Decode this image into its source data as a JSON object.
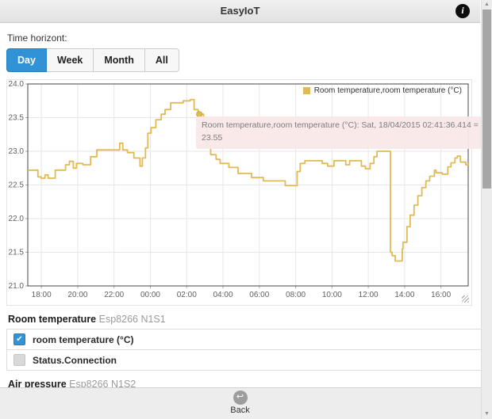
{
  "header": {
    "title": "EasyIoT",
    "info_icon": "i"
  },
  "time_horizon": {
    "label": "Time horizont:",
    "options": [
      {
        "label": "Day",
        "active": true
      },
      {
        "label": "Week",
        "active": false
      },
      {
        "label": "Month",
        "active": false
      },
      {
        "label": "All",
        "active": false
      }
    ]
  },
  "chart_data": {
    "type": "line",
    "step": true,
    "title": "",
    "xlabel": "",
    "ylabel": "",
    "xlim": [
      17.25,
      41.5
    ],
    "ylim": [
      21.0,
      24.0
    ],
    "y_ticks": [
      21.0,
      21.5,
      22.0,
      22.5,
      23.0,
      23.5,
      24.0
    ],
    "x_ticks": [
      {
        "hour": 18,
        "label": "18:00"
      },
      {
        "hour": 20,
        "label": "20:00"
      },
      {
        "hour": 22,
        "label": "22:00"
      },
      {
        "hour": 24,
        "label": "00:00"
      },
      {
        "hour": 26,
        "label": "02:00"
      },
      {
        "hour": 28,
        "label": "04:00"
      },
      {
        "hour": 30,
        "label": "06:00"
      },
      {
        "hour": 32,
        "label": "08:00"
      },
      {
        "hour": 34,
        "label": "10:00"
      },
      {
        "hour": 36,
        "label": "12:00"
      },
      {
        "hour": 38,
        "label": "14:00"
      },
      {
        "hour": 40,
        "label": "16:00"
      }
    ],
    "grid": true,
    "legend": {
      "position": "top-right",
      "label": "Room temperature,room temperature (°C)",
      "swatch_color": "#e0ba55"
    },
    "series": [
      {
        "name": "Room temperature,room temperature (°C)",
        "color": "#e0ba55",
        "points": [
          [
            17.25,
            22.72
          ],
          [
            17.81,
            22.62
          ],
          [
            17.98,
            22.6
          ],
          [
            18.2,
            22.65
          ],
          [
            18.37,
            22.6
          ],
          [
            18.76,
            22.72
          ],
          [
            19.33,
            22.8
          ],
          [
            19.54,
            22.85
          ],
          [
            19.76,
            22.75
          ],
          [
            19.93,
            22.82
          ],
          [
            20.28,
            22.8
          ],
          [
            20.71,
            22.92
          ],
          [
            21.05,
            23.02
          ],
          [
            22.25,
            23.02
          ],
          [
            22.31,
            23.12
          ],
          [
            22.48,
            23.02
          ],
          [
            22.74,
            22.98
          ],
          [
            23.09,
            22.9
          ],
          [
            23.43,
            22.78
          ],
          [
            23.56,
            22.9
          ],
          [
            23.73,
            23.05
          ],
          [
            23.86,
            23.27
          ],
          [
            24.04,
            23.35
          ],
          [
            24.3,
            23.47
          ],
          [
            24.6,
            23.55
          ],
          [
            24.81,
            23.62
          ],
          [
            25.12,
            23.72
          ],
          [
            25.81,
            23.75
          ],
          [
            26.2,
            23.77
          ],
          [
            26.41,
            23.62
          ],
          [
            26.63,
            23.57
          ],
          [
            26.69,
            23.55
          ],
          [
            26.93,
            23.35
          ],
          [
            27.11,
            23.08
          ],
          [
            27.32,
            22.95
          ],
          [
            27.62,
            22.88
          ],
          [
            27.84,
            22.82
          ],
          [
            28.32,
            22.76
          ],
          [
            28.83,
            22.67
          ],
          [
            29.57,
            22.61
          ],
          [
            30.22,
            22.56
          ],
          [
            31.43,
            22.49
          ],
          [
            32.08,
            22.7
          ],
          [
            32.25,
            22.82
          ],
          [
            32.51,
            22.86
          ],
          [
            33.46,
            22.82
          ],
          [
            33.76,
            22.78
          ],
          [
            34.11,
            22.86
          ],
          [
            34.76,
            22.8
          ],
          [
            34.97,
            22.86
          ],
          [
            35.62,
            22.78
          ],
          [
            35.84,
            22.74
          ],
          [
            36.1,
            22.82
          ],
          [
            36.31,
            22.92
          ],
          [
            36.48,
            23.0
          ],
          [
            37.22,
            21.5
          ],
          [
            37.31,
            21.45
          ],
          [
            37.48,
            21.37
          ],
          [
            37.87,
            21.55
          ],
          [
            37.91,
            21.65
          ],
          [
            38.13,
            21.88
          ],
          [
            38.3,
            22.05
          ],
          [
            38.52,
            22.2
          ],
          [
            38.73,
            22.34
          ],
          [
            38.95,
            22.46
          ],
          [
            39.17,
            22.56
          ],
          [
            39.38,
            22.63
          ],
          [
            39.64,
            22.72
          ],
          [
            39.73,
            22.68
          ],
          [
            40.07,
            22.66
          ],
          [
            40.38,
            22.77
          ],
          [
            40.55,
            22.83
          ],
          [
            40.77,
            22.9
          ],
          [
            40.9,
            22.93
          ],
          [
            41.07,
            22.84
          ],
          [
            41.37,
            22.8
          ],
          [
            41.5,
            22.82
          ]
        ]
      }
    ],
    "highlight_point": {
      "x_hour": 26.693,
      "value": 23.55,
      "time_label": "Sat, 18/04/2015 02:41:36.414"
    },
    "tooltip": {
      "line1": "Room temperature,room temperature (°C): Sat, 18/04/2015 02:41:36.414 =",
      "line2": "23.55"
    }
  },
  "sections": [
    {
      "title": "Room temperature",
      "device": "Esp8266 N1S1",
      "rows": [
        {
          "label": "room temperature (°C)",
          "checked": true
        },
        {
          "label": "Status.Connection",
          "checked": false
        }
      ]
    },
    {
      "title": "Air pressure",
      "device": "Esp8266 N1S2",
      "rows": []
    }
  ],
  "footer": {
    "back_label": "Back",
    "back_icon": "↩"
  },
  "icons": {
    "check": "✔",
    "scroll_up": "▲",
    "scroll_down": "▼"
  },
  "colors": {
    "accent_blue": "#3193d5",
    "line_gold": "#e0ba55",
    "tooltip_bg": "#fae8e8",
    "plot_border": "#444444",
    "grid": "#e6e6e6"
  }
}
